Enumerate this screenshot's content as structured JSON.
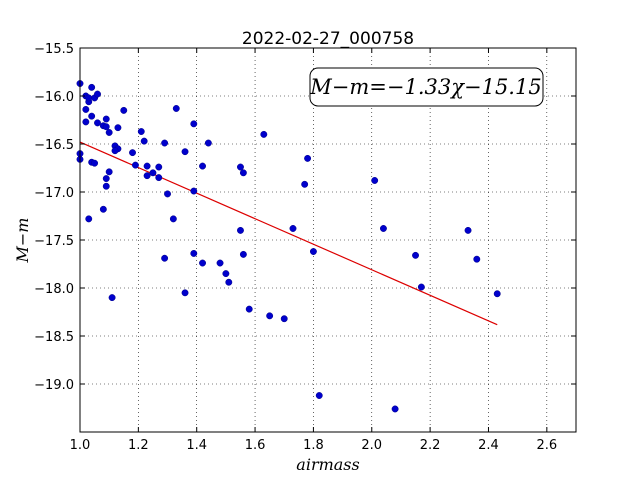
{
  "chart_data": {
    "type": "scatter",
    "title": "2022-02-27_000758",
    "xlabel": "airmass",
    "ylabel": "M−m",
    "xlim": [
      1.0,
      2.7
    ],
    "ylim": [
      -19.5,
      -15.5
    ],
    "y_inverted": true,
    "grid": true,
    "x_ticks": [
      "1.0",
      "1.2",
      "1.4",
      "1.6",
      "1.8",
      "2.0",
      "2.2",
      "2.4",
      "2.6"
    ],
    "y_ticks": [
      "−15.5",
      "−16.0",
      "−16.5",
      "−17.0",
      "−17.5",
      "−18.0",
      "−18.5",
      "−19.0"
    ],
    "annotation": "M−m=−1.33χ−15.15",
    "fit": {
      "slope": -1.33,
      "intercept": -15.15,
      "x_range": [
        1.0,
        2.43
      ],
      "color": "#dd0000"
    },
    "point_color": "#0000cc",
    "points": [
      [
        1.0,
        -15.87
      ],
      [
        1.0,
        -16.6
      ],
      [
        1.0,
        -16.66
      ],
      [
        1.02,
        -16.0
      ],
      [
        1.02,
        -16.14
      ],
      [
        1.02,
        -16.27
      ],
      [
        1.03,
        -16.06
      ],
      [
        1.03,
        -16.02
      ],
      [
        1.04,
        -15.91
      ],
      [
        1.04,
        -16.21
      ],
      [
        1.05,
        -16.02
      ],
      [
        1.06,
        -15.98
      ],
      [
        1.06,
        -16.28
      ],
      [
        1.04,
        -16.69
      ],
      [
        1.05,
        -16.7
      ],
      [
        1.03,
        -17.28
      ],
      [
        1.08,
        -16.31
      ],
      [
        1.09,
        -16.24
      ],
      [
        1.09,
        -16.32
      ],
      [
        1.1,
        -16.38
      ],
      [
        1.09,
        -16.86
      ],
      [
        1.09,
        -16.94
      ],
      [
        1.1,
        -16.79
      ],
      [
        1.08,
        -17.18
      ],
      [
        1.12,
        -16.52
      ],
      [
        1.13,
        -16.55
      ],
      [
        1.12,
        -16.57
      ],
      [
        1.13,
        -16.33
      ],
      [
        1.15,
        -16.15
      ],
      [
        1.11,
        -18.1
      ],
      [
        1.18,
        -16.59
      ],
      [
        1.19,
        -16.72
      ],
      [
        1.21,
        -16.37
      ],
      [
        1.22,
        -16.47
      ],
      [
        1.23,
        -16.73
      ],
      [
        1.23,
        -16.83
      ],
      [
        1.25,
        -16.8
      ],
      [
        1.27,
        -16.74
      ],
      [
        1.27,
        -16.85
      ],
      [
        1.29,
        -16.49
      ],
      [
        1.3,
        -17.02
      ],
      [
        1.32,
        -17.28
      ],
      [
        1.29,
        -17.69
      ],
      [
        1.33,
        -16.13
      ],
      [
        1.36,
        -16.58
      ],
      [
        1.36,
        -18.05
      ],
      [
        1.39,
        -16.29
      ],
      [
        1.39,
        -16.99
      ],
      [
        1.39,
        -17.64
      ],
      [
        1.42,
        -16.73
      ],
      [
        1.42,
        -17.74
      ],
      [
        1.44,
        -16.49
      ],
      [
        1.48,
        -17.74
      ],
      [
        1.5,
        -17.85
      ],
      [
        1.51,
        -17.94
      ],
      [
        1.55,
        -16.74
      ],
      [
        1.56,
        -16.8
      ],
      [
        1.55,
        -17.4
      ],
      [
        1.56,
        -17.65
      ],
      [
        1.58,
        -18.22
      ],
      [
        1.63,
        -16.4
      ],
      [
        1.65,
        -18.29
      ],
      [
        1.7,
        -18.32
      ],
      [
        1.73,
        -17.38
      ],
      [
        1.77,
        -16.92
      ],
      [
        1.78,
        -16.65
      ],
      [
        1.8,
        -17.62
      ],
      [
        1.82,
        -19.12
      ],
      [
        2.01,
        -16.88
      ],
      [
        2.04,
        -17.38
      ],
      [
        2.08,
        -19.26
      ],
      [
        2.15,
        -17.66
      ],
      [
        2.17,
        -17.99
      ],
      [
        2.33,
        -17.4
      ],
      [
        2.36,
        -17.7
      ],
      [
        2.43,
        -18.06
      ]
    ]
  }
}
